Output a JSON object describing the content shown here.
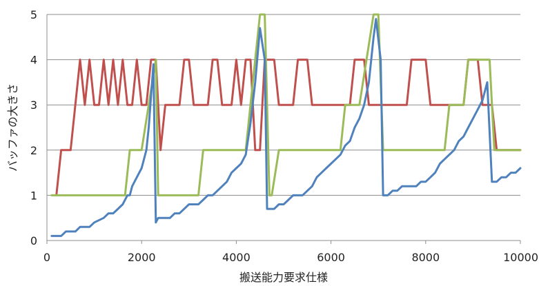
{
  "chart_data": {
    "type": "line",
    "title": "",
    "xlabel": "搬送能力要求仕様",
    "ylabel": "バッファの大きさ",
    "xlim": [
      0,
      10000
    ],
    "ylim": [
      0,
      5
    ],
    "x_ticks": [
      "0",
      "2000",
      "4000",
      "6000",
      "8000",
      "10000"
    ],
    "y_ticks": [
      "0",
      "1",
      "2",
      "3",
      "4",
      "5"
    ],
    "grid": "horizontal",
    "legend": "none",
    "series": [
      {
        "color": "#c0504d",
        "points": [
          [
            200,
            1
          ],
          [
            300,
            2
          ],
          [
            500,
            2
          ],
          [
            700,
            4
          ],
          [
            800,
            3
          ],
          [
            900,
            4
          ],
          [
            1000,
            3
          ],
          [
            1100,
            3
          ],
          [
            1200,
            4
          ],
          [
            1300,
            3
          ],
          [
            1400,
            4
          ],
          [
            1500,
            3
          ],
          [
            1600,
            4
          ],
          [
            1700,
            3
          ],
          [
            1800,
            3
          ],
          [
            1900,
            4
          ],
          [
            2000,
            3
          ],
          [
            2100,
            3
          ],
          [
            2200,
            4
          ],
          [
            2300,
            4
          ],
          [
            2400,
            2
          ],
          [
            2500,
            3
          ],
          [
            2800,
            3
          ],
          [
            2900,
            4
          ],
          [
            3000,
            4
          ],
          [
            3100,
            3
          ],
          [
            3400,
            3
          ],
          [
            3500,
            4
          ],
          [
            3600,
            4
          ],
          [
            3700,
            3
          ],
          [
            3900,
            3
          ],
          [
            4000,
            4
          ],
          [
            4100,
            3
          ],
          [
            4200,
            4
          ],
          [
            4300,
            4
          ],
          [
            4400,
            2
          ],
          [
            4500,
            2
          ],
          [
            4600,
            4
          ],
          [
            4800,
            4
          ],
          [
            4900,
            3
          ],
          [
            5200,
            3
          ],
          [
            5300,
            4
          ],
          [
            5500,
            4
          ],
          [
            5600,
            3
          ],
          [
            6200,
            3
          ],
          [
            6300,
            3
          ],
          [
            6400,
            3
          ],
          [
            6500,
            4
          ],
          [
            6700,
            4
          ],
          [
            6800,
            3
          ],
          [
            7500,
            3
          ],
          [
            7600,
            3
          ],
          [
            7700,
            4
          ],
          [
            8000,
            4
          ],
          [
            8100,
            3
          ],
          [
            8800,
            3
          ],
          [
            8900,
            4
          ],
          [
            9100,
            4
          ],
          [
            9200,
            3
          ],
          [
            9400,
            3
          ],
          [
            9500,
            2
          ],
          [
            10000,
            2
          ]
        ]
      },
      {
        "color": "#9bbb59",
        "points": [
          [
            100,
            1
          ],
          [
            1650,
            1
          ],
          [
            1750,
            2
          ],
          [
            2000,
            2
          ],
          [
            2300,
            4
          ],
          [
            2350,
            1
          ],
          [
            3200,
            1
          ],
          [
            3300,
            2
          ],
          [
            4200,
            2
          ],
          [
            4400,
            4
          ],
          [
            4500,
            5
          ],
          [
            4600,
            5
          ],
          [
            4700,
            1
          ],
          [
            4750,
            1
          ],
          [
            4900,
            2
          ],
          [
            6200,
            2
          ],
          [
            6300,
            3
          ],
          [
            6600,
            3
          ],
          [
            6900,
            5
          ],
          [
            7000,
            5
          ],
          [
            7100,
            2
          ],
          [
            8400,
            2
          ],
          [
            8500,
            3
          ],
          [
            8800,
            3
          ],
          [
            8900,
            4
          ],
          [
            9350,
            4
          ],
          [
            9450,
            2
          ],
          [
            10000,
            2
          ]
        ]
      },
      {
        "color": "#4f81bd",
        "points": [
          [
            100,
            0.1
          ],
          [
            300,
            0.1
          ],
          [
            400,
            0.2
          ],
          [
            600,
            0.2
          ],
          [
            700,
            0.3
          ],
          [
            900,
            0.3
          ],
          [
            1000,
            0.4
          ],
          [
            1200,
            0.5
          ],
          [
            1300,
            0.6
          ],
          [
            1400,
            0.6
          ],
          [
            1500,
            0.7
          ],
          [
            1600,
            0.8
          ],
          [
            1700,
            1.0
          ],
          [
            1750,
            1.0
          ],
          [
            1800,
            1.2
          ],
          [
            1900,
            1.4
          ],
          [
            2000,
            1.6
          ],
          [
            2100,
            2.0
          ],
          [
            2150,
            2.5
          ],
          [
            2250,
            3.9
          ],
          [
            2300,
            0.4
          ],
          [
            2350,
            0.5
          ],
          [
            2600,
            0.5
          ],
          [
            2700,
            0.6
          ],
          [
            2800,
            0.6
          ],
          [
            2900,
            0.7
          ],
          [
            3000,
            0.8
          ],
          [
            3200,
            0.8
          ],
          [
            3300,
            0.9
          ],
          [
            3400,
            1.0
          ],
          [
            3500,
            1.0
          ],
          [
            3600,
            1.1
          ],
          [
            3700,
            1.2
          ],
          [
            3800,
            1.3
          ],
          [
            3900,
            1.5
          ],
          [
            4000,
            1.6
          ],
          [
            4100,
            1.7
          ],
          [
            4200,
            1.9
          ],
          [
            4300,
            2.6
          ],
          [
            4400,
            3.5
          ],
          [
            4500,
            4.7
          ],
          [
            4600,
            4.0
          ],
          [
            4650,
            0.7
          ],
          [
            4800,
            0.7
          ],
          [
            4900,
            0.8
          ],
          [
            5000,
            0.8
          ],
          [
            5100,
            0.9
          ],
          [
            5200,
            1.0
          ],
          [
            5400,
            1.0
          ],
          [
            5500,
            1.1
          ],
          [
            5600,
            1.2
          ],
          [
            5700,
            1.4
          ],
          [
            5800,
            1.5
          ],
          [
            5900,
            1.6
          ],
          [
            6000,
            1.7
          ],
          [
            6100,
            1.8
          ],
          [
            6200,
            1.9
          ],
          [
            6300,
            2.1
          ],
          [
            6400,
            2.2
          ],
          [
            6500,
            2.5
          ],
          [
            6600,
            2.7
          ],
          [
            6700,
            3.0
          ],
          [
            6800,
            3.5
          ],
          [
            6900,
            4.5
          ],
          [
            6950,
            4.9
          ],
          [
            7050,
            4.0
          ],
          [
            7100,
            1.0
          ],
          [
            7200,
            1.0
          ],
          [
            7300,
            1.1
          ],
          [
            7400,
            1.1
          ],
          [
            7500,
            1.2
          ],
          [
            7800,
            1.2
          ],
          [
            7900,
            1.3
          ],
          [
            8000,
            1.3
          ],
          [
            8100,
            1.4
          ],
          [
            8200,
            1.5
          ],
          [
            8300,
            1.7
          ],
          [
            8400,
            1.8
          ],
          [
            8500,
            1.9
          ],
          [
            8600,
            2.0
          ],
          [
            8700,
            2.2
          ],
          [
            8800,
            2.3
          ],
          [
            8900,
            2.5
          ],
          [
            9000,
            2.7
          ],
          [
            9100,
            2.9
          ],
          [
            9200,
            3.1
          ],
          [
            9300,
            3.5
          ],
          [
            9400,
            1.3
          ],
          [
            9500,
            1.3
          ],
          [
            9600,
            1.4
          ],
          [
            9700,
            1.4
          ],
          [
            9800,
            1.5
          ],
          [
            9900,
            1.5
          ],
          [
            10000,
            1.6
          ]
        ]
      }
    ]
  }
}
